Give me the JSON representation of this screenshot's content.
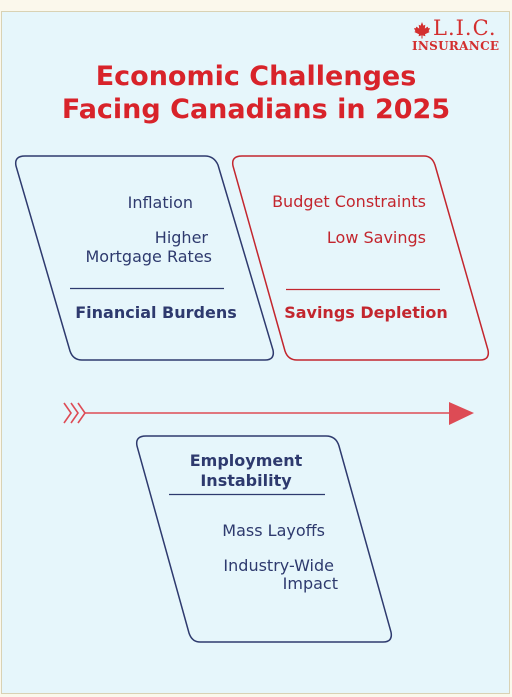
{
  "logo": {
    "letters": "L.I.C.",
    "word": "INSURANCE",
    "mark": "maple-leaf-icon"
  },
  "title": {
    "line1": "Economic Challenges",
    "line2": "Facing Canadians in 2025"
  },
  "panels": {
    "financial": {
      "items": [
        "Inflation",
        "Higher",
        "Mortgage Rates"
      ],
      "heading": "Financial Burdens"
    },
    "savings": {
      "items": [
        "Budget Constraints",
        "Low Savings"
      ],
      "heading": "Savings Depletion"
    },
    "employment": {
      "heading_line1": "Employment",
      "heading_line2": "Instability",
      "items": [
        "Mass Layoffs",
        "Industry-Wide",
        "Impact"
      ]
    }
  },
  "colors": {
    "title": "#d8232a",
    "blue": "#2e3a6e",
    "red": "#c3262e",
    "arrow": "#dd4b55",
    "background": "#e6f6fb"
  }
}
